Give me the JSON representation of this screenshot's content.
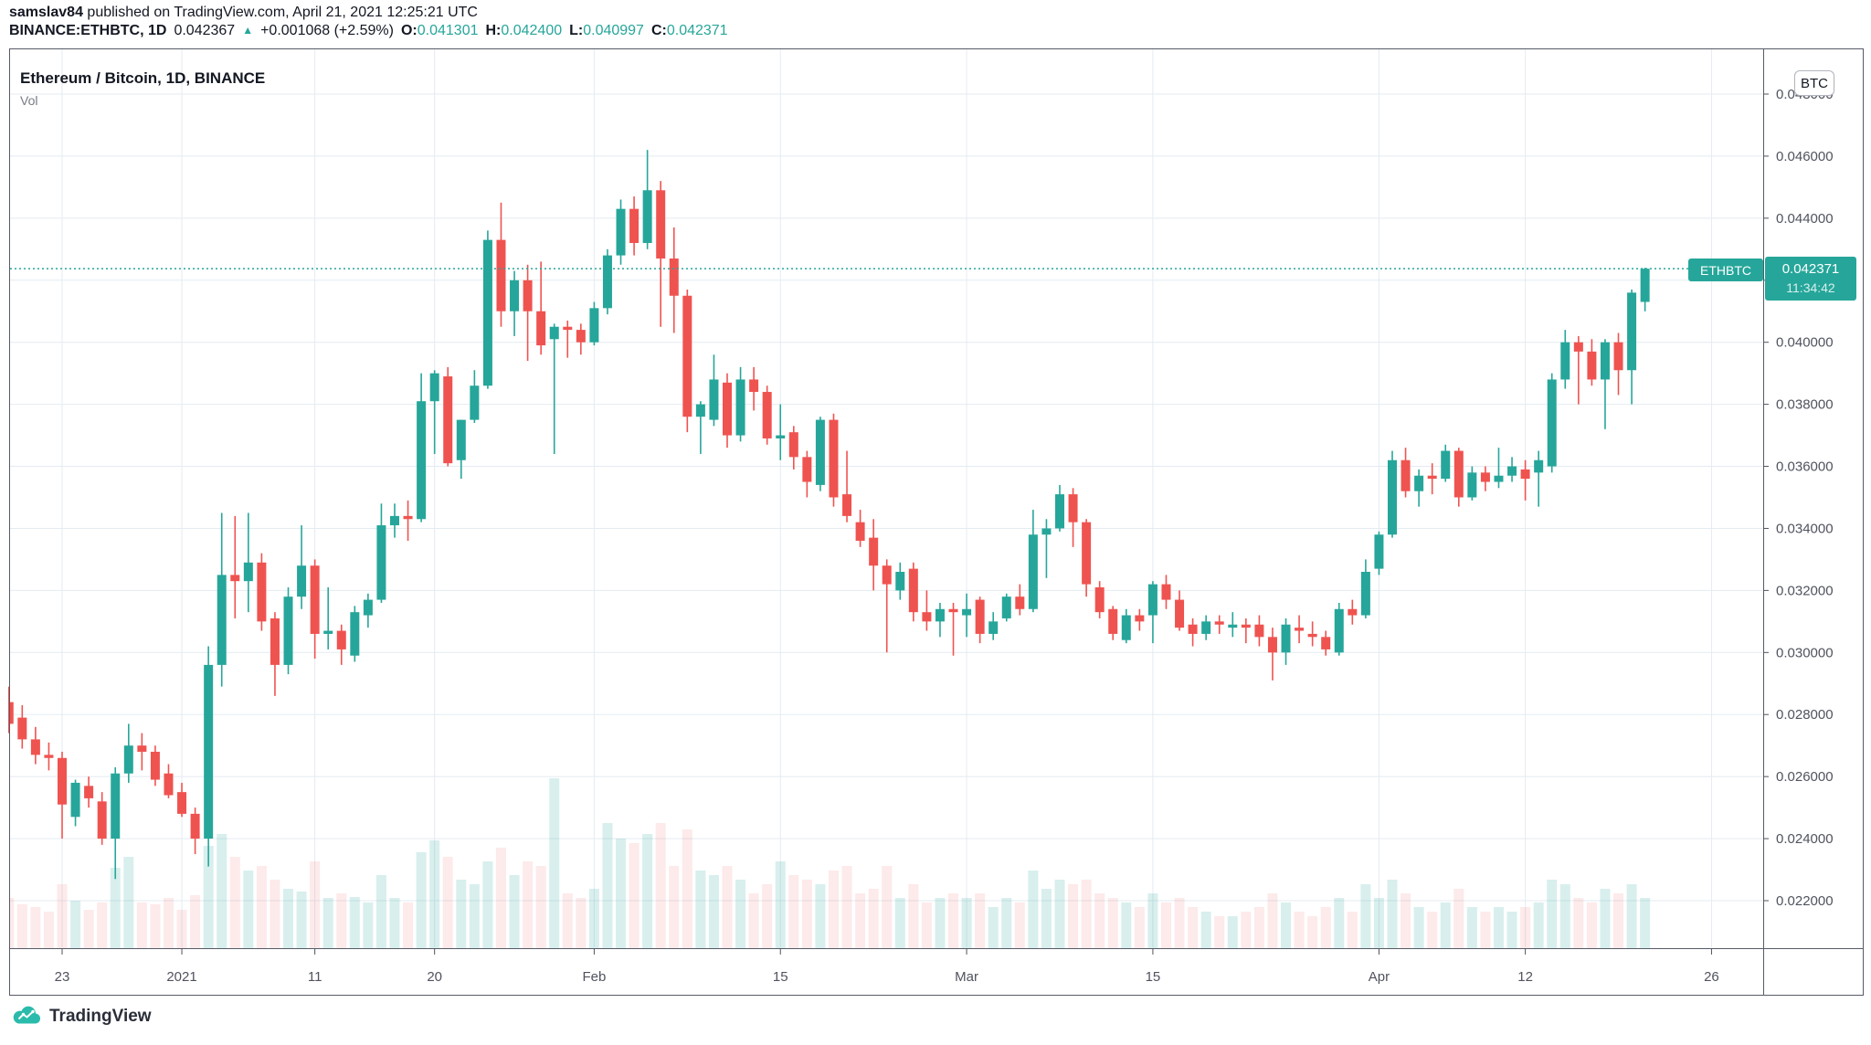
{
  "header": {
    "author": "samslav84",
    "published_text": " published on TradingView.com, April 21, 2021 12:25:21 UTC",
    "symbol_line": {
      "symbol": "BINANCE:ETHBTC, 1D",
      "last_price": "0.042367",
      "change": "+0.001068 (+2.59%)",
      "o_label": "O:",
      "o_value": "0.041301",
      "h_label": "H:",
      "h_value": "0.042400",
      "l_label": "L:",
      "l_value": "0.040997",
      "c_label": "C:",
      "c_value": "0.042371"
    }
  },
  "chart": {
    "legend_title": "Ethereum / Bitcoin, 1D, BINANCE",
    "legend_vol": "Vol",
    "axis_currency": "BTC",
    "price_label": {
      "symbol": "ETHBTC",
      "price": "0.042371",
      "countdown": "11:34:42"
    },
    "colors": {
      "up": "#26a69a",
      "down": "#ef5350",
      "vol_up": "rgba(38,166,154,0.18)",
      "vol_down": "rgba(239,83,80,0.12)",
      "grid": "#e4ebf2",
      "axis_text": "#50535e",
      "frame": "#565b66",
      "current_price_line": "#26a69a"
    }
  },
  "footer": {
    "logo_text": "TradingView"
  },
  "chart_data": {
    "type": "candlestick+volume",
    "title": "Ethereum / Bitcoin, 1D, BINANCE",
    "exchange": "BINANCE",
    "symbol": "ETHBTC",
    "interval": "1D",
    "current_price": 0.042371,
    "y_axis": {
      "unit": "BTC",
      "min_visible": 0.0205,
      "max_visible": 0.0495,
      "ticks": [
        {
          "label": "0.048000",
          "value": 0.048
        },
        {
          "label": "0.046000",
          "value": 0.046
        },
        {
          "label": "0.044000",
          "value": 0.044
        },
        {
          "label": "0.042000",
          "value": 0.042
        },
        {
          "label": "0.040000",
          "value": 0.04
        },
        {
          "label": "0.038000",
          "value": 0.038
        },
        {
          "label": "0.036000",
          "value": 0.036
        },
        {
          "label": "0.034000",
          "value": 0.034
        },
        {
          "label": "0.032000",
          "value": 0.032
        },
        {
          "label": "0.030000",
          "value": 0.03
        },
        {
          "label": "0.028000",
          "value": 0.028
        },
        {
          "label": "0.026000",
          "value": 0.026
        },
        {
          "label": "0.024000",
          "value": 0.024
        },
        {
          "label": "0.022000",
          "value": 0.022
        }
      ]
    },
    "x_axis": {
      "ticks": [
        {
          "label": "23",
          "date": "2020-12-23",
          "i": 4
        },
        {
          "label": "2021",
          "date": "2021-01-01",
          "i": 13
        },
        {
          "label": "11",
          "date": "2021-01-11",
          "i": 23
        },
        {
          "label": "20",
          "date": "2021-01-20",
          "i": 32
        },
        {
          "label": "Feb",
          "date": "2021-02-01",
          "i": 44
        },
        {
          "label": "15",
          "date": "2021-02-15",
          "i": 58
        },
        {
          "label": "Mar",
          "date": "2021-03-01",
          "i": 72
        },
        {
          "label": "15",
          "date": "2021-03-15",
          "i": 86
        },
        {
          "label": "Apr",
          "date": "2021-04-01",
          "i": 103
        },
        {
          "label": "12",
          "date": "2021-04-12",
          "i": 114
        },
        {
          "label": "26",
          "date": "2021-04-26",
          "i": 128
        }
      ]
    },
    "columns": [
      "date",
      "open",
      "high",
      "low",
      "close",
      "vol_rel_px"
    ],
    "rows": [
      [
        "2020-12-19",
        0.0284,
        0.0289,
        0.0274,
        0.0277,
        55
      ],
      [
        "2020-12-20",
        0.0279,
        0.0283,
        0.0269,
        0.0272,
        48
      ],
      [
        "2020-12-21",
        0.0272,
        0.0276,
        0.0264,
        0.0267,
        45
      ],
      [
        "2020-12-22",
        0.0267,
        0.0271,
        0.0262,
        0.0266,
        40
      ],
      [
        "2020-12-23",
        0.0266,
        0.0268,
        0.024,
        0.0251,
        70
      ],
      [
        "2020-12-24",
        0.0247,
        0.0259,
        0.0244,
        0.0258,
        52
      ],
      [
        "2020-12-25",
        0.0257,
        0.026,
        0.025,
        0.0253,
        42
      ],
      [
        "2020-12-26",
        0.0252,
        0.0255,
        0.0238,
        0.024,
        50
      ],
      [
        "2020-12-27",
        0.024,
        0.0263,
        0.0227,
        0.0261,
        88
      ],
      [
        "2020-12-28",
        0.0261,
        0.0277,
        0.0258,
        0.027,
        100
      ],
      [
        "2020-12-29",
        0.027,
        0.0274,
        0.0262,
        0.0268,
        50
      ],
      [
        "2020-12-30",
        0.0268,
        0.027,
        0.0257,
        0.0259,
        48
      ],
      [
        "2020-12-31",
        0.0261,
        0.0264,
        0.0253,
        0.0254,
        55
      ],
      [
        "2021-01-01",
        0.0255,
        0.0258,
        0.0247,
        0.0248,
        42
      ],
      [
        "2021-01-02",
        0.0248,
        0.025,
        0.0235,
        0.024,
        58
      ],
      [
        "2021-01-03",
        0.024,
        0.0302,
        0.0231,
        0.0296,
        112
      ],
      [
        "2021-01-04",
        0.0296,
        0.0345,
        0.0289,
        0.0325,
        125
      ],
      [
        "2021-01-05",
        0.0325,
        0.0344,
        0.0311,
        0.0323,
        100
      ],
      [
        "2021-01-06",
        0.0323,
        0.0345,
        0.0313,
        0.0329,
        85
      ],
      [
        "2021-01-07",
        0.0329,
        0.0332,
        0.0307,
        0.031,
        90
      ],
      [
        "2021-01-08",
        0.0311,
        0.0313,
        0.0286,
        0.0296,
        75
      ],
      [
        "2021-01-09",
        0.0296,
        0.0321,
        0.0293,
        0.0318,
        65
      ],
      [
        "2021-01-10",
        0.0318,
        0.0341,
        0.0314,
        0.0328,
        62
      ],
      [
        "2021-01-11",
        0.0328,
        0.033,
        0.0298,
        0.0306,
        95
      ],
      [
        "2021-01-12",
        0.0306,
        0.0321,
        0.0301,
        0.0307,
        55
      ],
      [
        "2021-01-13",
        0.0307,
        0.0309,
        0.0296,
        0.0301,
        60
      ],
      [
        "2021-01-14",
        0.0299,
        0.0315,
        0.0297,
        0.0313,
        56
      ],
      [
        "2021-01-15",
        0.0312,
        0.0319,
        0.0308,
        0.0317,
        50
      ],
      [
        "2021-01-16",
        0.0317,
        0.0348,
        0.0316,
        0.0341,
        80
      ],
      [
        "2021-01-17",
        0.0341,
        0.0348,
        0.0337,
        0.0344,
        55
      ],
      [
        "2021-01-18",
        0.0344,
        0.0349,
        0.0336,
        0.0343,
        50
      ],
      [
        "2021-01-19",
        0.0343,
        0.039,
        0.0342,
        0.0381,
        105
      ],
      [
        "2021-01-20",
        0.0381,
        0.0391,
        0.0364,
        0.039,
        118
      ],
      [
        "2021-01-21",
        0.0389,
        0.0392,
        0.036,
        0.0361,
        100
      ],
      [
        "2021-01-22",
        0.0362,
        0.0375,
        0.0356,
        0.0375,
        75
      ],
      [
        "2021-01-23",
        0.0375,
        0.0391,
        0.0374,
        0.0386,
        70
      ],
      [
        "2021-01-24",
        0.0386,
        0.0436,
        0.0385,
        0.0433,
        95
      ],
      [
        "2021-01-25",
        0.0433,
        0.0445,
        0.0405,
        0.041,
        110
      ],
      [
        "2021-01-26",
        0.041,
        0.0423,
        0.0402,
        0.042,
        80
      ],
      [
        "2021-01-27",
        0.042,
        0.0425,
        0.0394,
        0.041,
        95
      ],
      [
        "2021-01-28",
        0.041,
        0.0426,
        0.0396,
        0.0399,
        90
      ],
      [
        "2021-01-29",
        0.0401,
        0.0406,
        0.0364,
        0.0405,
        186
      ],
      [
        "2021-01-30",
        0.0405,
        0.0407,
        0.0395,
        0.0404,
        60
      ],
      [
        "2021-01-31",
        0.0404,
        0.0406,
        0.0396,
        0.04,
        55
      ],
      [
        "2021-02-01",
        0.04,
        0.0413,
        0.0399,
        0.0411,
        65
      ],
      [
        "2021-02-02",
        0.0411,
        0.043,
        0.0409,
        0.0428,
        137
      ],
      [
        "2021-02-03",
        0.0428,
        0.0446,
        0.0425,
        0.0443,
        120
      ],
      [
        "2021-02-04",
        0.0443,
        0.0447,
        0.0428,
        0.0432,
        115
      ],
      [
        "2021-02-05",
        0.0432,
        0.0462,
        0.043,
        0.0449,
        125
      ],
      [
        "2021-02-06",
        0.0449,
        0.0452,
        0.0405,
        0.0427,
        137
      ],
      [
        "2021-02-07",
        0.0427,
        0.0437,
        0.0403,
        0.0415,
        90
      ],
      [
        "2021-02-08",
        0.0415,
        0.0417,
        0.0371,
        0.0376,
        130
      ],
      [
        "2021-02-09",
        0.0376,
        0.0381,
        0.0364,
        0.038,
        85
      ],
      [
        "2021-02-10",
        0.0375,
        0.0396,
        0.0373,
        0.0388,
        80
      ],
      [
        "2021-02-11",
        0.0387,
        0.039,
        0.0366,
        0.037,
        90
      ],
      [
        "2021-02-12",
        0.037,
        0.0392,
        0.0368,
        0.0388,
        75
      ],
      [
        "2021-02-13",
        0.0388,
        0.0392,
        0.0378,
        0.0384,
        60
      ],
      [
        "2021-02-14",
        0.0384,
        0.0386,
        0.0367,
        0.0369,
        70
      ],
      [
        "2021-02-15",
        0.0369,
        0.038,
        0.0362,
        0.037,
        95
      ],
      [
        "2021-02-16",
        0.0371,
        0.0373,
        0.0359,
        0.0363,
        80
      ],
      [
        "2021-02-17",
        0.0363,
        0.0365,
        0.035,
        0.0355,
        75
      ],
      [
        "2021-02-18",
        0.0354,
        0.0376,
        0.0352,
        0.0375,
        70
      ],
      [
        "2021-02-19",
        0.0375,
        0.0377,
        0.0347,
        0.035,
        85
      ],
      [
        "2021-02-20",
        0.0351,
        0.0365,
        0.0342,
        0.0344,
        90
      ],
      [
        "2021-02-21",
        0.0342,
        0.0346,
        0.0334,
        0.0336,
        60
      ],
      [
        "2021-02-22",
        0.0337,
        0.0343,
        0.032,
        0.0328,
        65
      ],
      [
        "2021-02-23",
        0.0328,
        0.033,
        0.03,
        0.0322,
        90
      ],
      [
        "2021-02-24",
        0.032,
        0.0329,
        0.0317,
        0.0326,
        55
      ],
      [
        "2021-02-25",
        0.0327,
        0.0329,
        0.031,
        0.0313,
        70
      ],
      [
        "2021-02-26",
        0.0313,
        0.032,
        0.0307,
        0.031,
        50
      ],
      [
        "2021-02-27",
        0.031,
        0.0316,
        0.0305,
        0.0314,
        55
      ],
      [
        "2021-02-28",
        0.0314,
        0.0316,
        0.0299,
        0.0313,
        60
      ],
      [
        "2021-03-01",
        0.0312,
        0.0319,
        0.0305,
        0.0314,
        55
      ],
      [
        "2021-03-02",
        0.0317,
        0.0318,
        0.0303,
        0.0306,
        60
      ],
      [
        "2021-03-03",
        0.0306,
        0.0313,
        0.0304,
        0.031,
        45
      ],
      [
        "2021-03-04",
        0.0311,
        0.0319,
        0.031,
        0.0318,
        55
      ],
      [
        "2021-03-05",
        0.0318,
        0.0322,
        0.0312,
        0.0314,
        50
      ],
      [
        "2021-03-06",
        0.0314,
        0.0346,
        0.0313,
        0.0338,
        85
      ],
      [
        "2021-03-07",
        0.0338,
        0.0343,
        0.0324,
        0.034,
        65
      ],
      [
        "2021-03-08",
        0.034,
        0.0354,
        0.0339,
        0.0351,
        75
      ],
      [
        "2021-03-09",
        0.0351,
        0.0353,
        0.0334,
        0.0342,
        70
      ],
      [
        "2021-03-10",
        0.0342,
        0.0343,
        0.0318,
        0.0322,
        75
      ],
      [
        "2021-03-11",
        0.0321,
        0.0323,
        0.0311,
        0.0313,
        60
      ],
      [
        "2021-03-12",
        0.0314,
        0.0315,
        0.0304,
        0.0306,
        55
      ],
      [
        "2021-03-13",
        0.0304,
        0.0314,
        0.0303,
        0.0312,
        50
      ],
      [
        "2021-03-14",
        0.0312,
        0.0314,
        0.0307,
        0.031,
        45
      ],
      [
        "2021-03-15",
        0.0312,
        0.0323,
        0.0303,
        0.0322,
        60
      ],
      [
        "2021-03-16",
        0.0322,
        0.0325,
        0.0314,
        0.0317,
        50
      ],
      [
        "2021-03-17",
        0.0317,
        0.032,
        0.0307,
        0.0308,
        55
      ],
      [
        "2021-03-18",
        0.0309,
        0.0311,
        0.0302,
        0.0306,
        45
      ],
      [
        "2021-03-19",
        0.0306,
        0.0312,
        0.0304,
        0.031,
        40
      ],
      [
        "2021-03-20",
        0.031,
        0.0312,
        0.0306,
        0.0309,
        35
      ],
      [
        "2021-03-21",
        0.0308,
        0.0313,
        0.0305,
        0.0309,
        35
      ],
      [
        "2021-03-22",
        0.0309,
        0.0311,
        0.0303,
        0.0308,
        40
      ],
      [
        "2021-03-23",
        0.0309,
        0.0312,
        0.0302,
        0.0305,
        45
      ],
      [
        "2021-03-24",
        0.0305,
        0.0308,
        0.0291,
        0.03,
        60
      ],
      [
        "2021-03-25",
        0.03,
        0.0311,
        0.0296,
        0.0309,
        50
      ],
      [
        "2021-03-26",
        0.0308,
        0.0312,
        0.0303,
        0.0307,
        40
      ],
      [
        "2021-03-27",
        0.0306,
        0.031,
        0.0302,
        0.0305,
        35
      ],
      [
        "2021-03-28",
        0.0305,
        0.0307,
        0.0299,
        0.0301,
        45
      ],
      [
        "2021-03-29",
        0.03,
        0.0316,
        0.0299,
        0.0314,
        55
      ],
      [
        "2021-03-30",
        0.0314,
        0.0317,
        0.0309,
        0.0312,
        40
      ],
      [
        "2021-03-31",
        0.0312,
        0.033,
        0.0311,
        0.0326,
        70
      ],
      [
        "2021-04-01",
        0.0327,
        0.0339,
        0.0325,
        0.0338,
        55
      ],
      [
        "2021-04-02",
        0.0338,
        0.0365,
        0.0337,
        0.0362,
        75
      ],
      [
        "2021-04-03",
        0.0362,
        0.0366,
        0.035,
        0.0352,
        60
      ],
      [
        "2021-04-04",
        0.0352,
        0.0359,
        0.0347,
        0.0357,
        45
      ],
      [
        "2021-04-05",
        0.0357,
        0.0361,
        0.0351,
        0.0356,
        40
      ],
      [
        "2021-04-06",
        0.0356,
        0.0367,
        0.0355,
        0.0365,
        50
      ],
      [
        "2021-04-07",
        0.0365,
        0.0366,
        0.0347,
        0.035,
        65
      ],
      [
        "2021-04-08",
        0.035,
        0.036,
        0.0349,
        0.0358,
        45
      ],
      [
        "2021-04-09",
        0.0358,
        0.036,
        0.0352,
        0.0355,
        40
      ],
      [
        "2021-04-10",
        0.0355,
        0.0366,
        0.0353,
        0.0357,
        45
      ],
      [
        "2021-04-11",
        0.0357,
        0.0363,
        0.0355,
        0.036,
        40
      ],
      [
        "2021-04-12",
        0.0359,
        0.0362,
        0.0349,
        0.0356,
        45
      ],
      [
        "2021-04-13",
        0.0358,
        0.0365,
        0.0347,
        0.0362,
        50
      ],
      [
        "2021-04-14",
        0.036,
        0.039,
        0.0358,
        0.0388,
        75
      ],
      [
        "2021-04-15",
        0.0388,
        0.0404,
        0.0385,
        0.04,
        70
      ],
      [
        "2021-04-16",
        0.04,
        0.0402,
        0.038,
        0.0397,
        55
      ],
      [
        "2021-04-17",
        0.0397,
        0.0401,
        0.0386,
        0.0388,
        50
      ],
      [
        "2021-04-18",
        0.0388,
        0.0401,
        0.0372,
        0.04,
        65
      ],
      [
        "2021-04-19",
        0.04,
        0.0403,
        0.0383,
        0.0391,
        60
      ],
      [
        "2021-04-20",
        0.0391,
        0.0417,
        0.038,
        0.0416,
        70
      ],
      [
        "2021-04-21",
        0.041301,
        0.0424,
        0.040997,
        0.042371,
        55
      ]
    ]
  }
}
